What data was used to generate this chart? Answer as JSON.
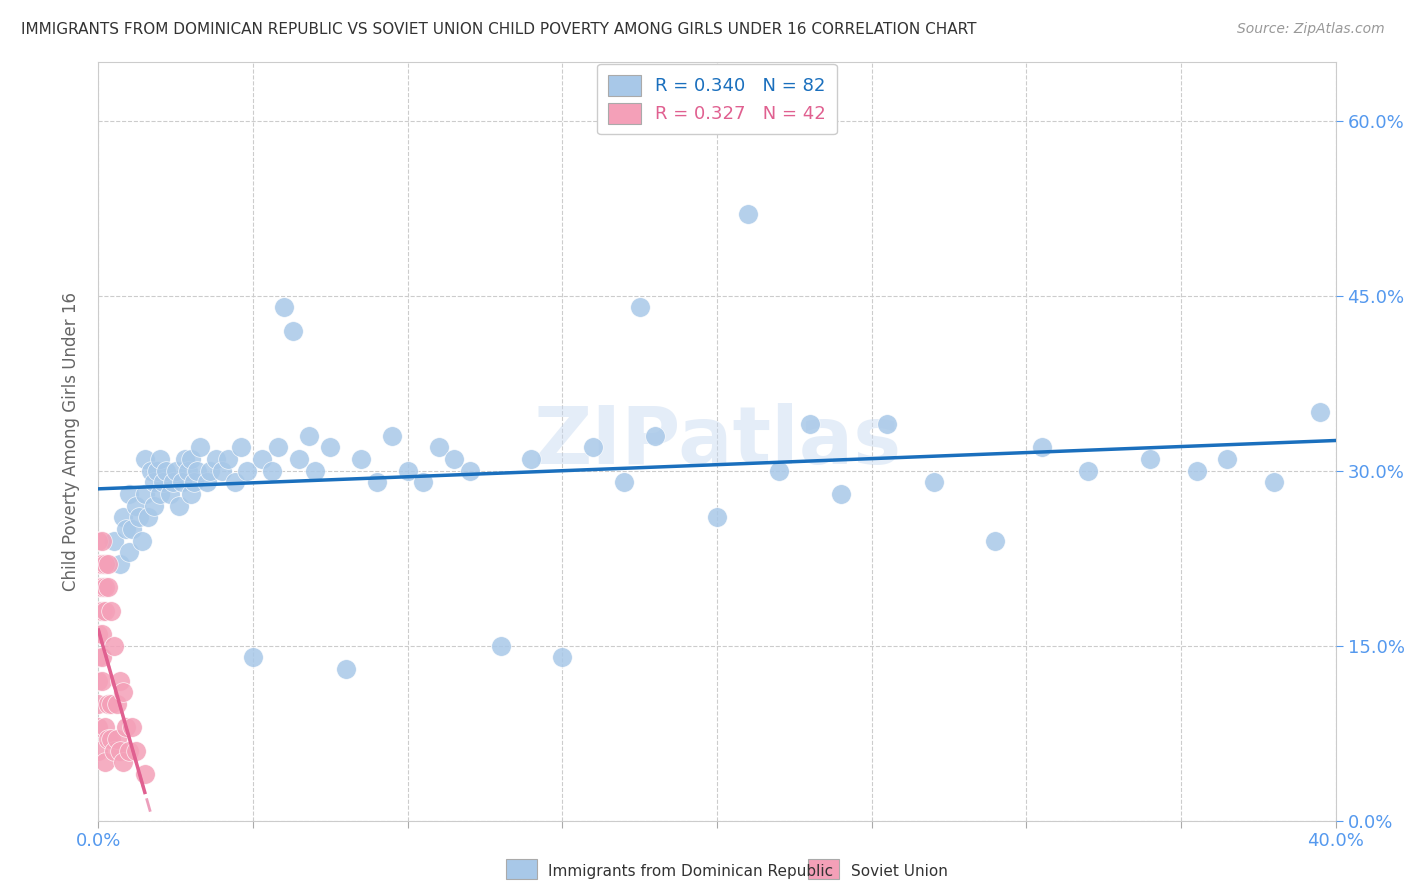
{
  "title": "IMMIGRANTS FROM DOMINICAN REPUBLIC VS SOVIET UNION CHILD POVERTY AMONG GIRLS UNDER 16 CORRELATION CHART",
  "source": "Source: ZipAtlas.com",
  "ylabel": "Child Poverty Among Girls Under 16",
  "xlim": [
    0.0,
    0.4
  ],
  "ylim": [
    0.0,
    0.65
  ],
  "xticks": [
    0.0,
    0.05,
    0.1,
    0.15,
    0.2,
    0.25,
    0.3,
    0.35,
    0.4
  ],
  "yticks": [
    0.0,
    0.15,
    0.3,
    0.45,
    0.6
  ],
  "ytick_labels": [
    "0.0%",
    "15.0%",
    "30.0%",
    "45.0%",
    "60.0%"
  ],
  "watermark": "ZIPatlas",
  "legend_label_blue": "R = 0.340   N = 82",
  "legend_label_pink": "R = 0.327   N = 42",
  "blue_color": "#a8c8e8",
  "pink_color": "#f4a0b8",
  "blue_line_color": "#1a6fbd",
  "pink_line_color": "#e06090",
  "background_color": "#ffffff",
  "grid_color": "#cccccc",
  "title_color": "#333333",
  "tick_color": "#5599ee",
  "dr_x": [
    0.005,
    0.007,
    0.008,
    0.009,
    0.01,
    0.01,
    0.011,
    0.012,
    0.013,
    0.014,
    0.015,
    0.015,
    0.016,
    0.017,
    0.018,
    0.018,
    0.019,
    0.02,
    0.02,
    0.021,
    0.022,
    0.023,
    0.024,
    0.025,
    0.026,
    0.027,
    0.028,
    0.029,
    0.03,
    0.03,
    0.031,
    0.032,
    0.033,
    0.035,
    0.036,
    0.038,
    0.04,
    0.042,
    0.044,
    0.046,
    0.048,
    0.05,
    0.053,
    0.056,
    0.058,
    0.06,
    0.063,
    0.065,
    0.068,
    0.07,
    0.075,
    0.08,
    0.085,
    0.09,
    0.095,
    0.1,
    0.105,
    0.11,
    0.115,
    0.12,
    0.13,
    0.14,
    0.15,
    0.16,
    0.17,
    0.175,
    0.18,
    0.2,
    0.21,
    0.22,
    0.23,
    0.24,
    0.255,
    0.27,
    0.29,
    0.305,
    0.32,
    0.34,
    0.355,
    0.365,
    0.38,
    0.395
  ],
  "dr_y": [
    0.24,
    0.22,
    0.26,
    0.25,
    0.23,
    0.28,
    0.25,
    0.27,
    0.26,
    0.24,
    0.28,
    0.31,
    0.26,
    0.3,
    0.27,
    0.29,
    0.3,
    0.28,
    0.31,
    0.29,
    0.3,
    0.28,
    0.29,
    0.3,
    0.27,
    0.29,
    0.31,
    0.3,
    0.28,
    0.31,
    0.29,
    0.3,
    0.32,
    0.29,
    0.3,
    0.31,
    0.3,
    0.31,
    0.29,
    0.32,
    0.3,
    0.14,
    0.31,
    0.3,
    0.32,
    0.44,
    0.42,
    0.31,
    0.33,
    0.3,
    0.32,
    0.13,
    0.31,
    0.29,
    0.33,
    0.3,
    0.29,
    0.32,
    0.31,
    0.3,
    0.15,
    0.31,
    0.14,
    0.32,
    0.29,
    0.44,
    0.33,
    0.26,
    0.52,
    0.3,
    0.34,
    0.28,
    0.34,
    0.29,
    0.24,
    0.32,
    0.3,
    0.31,
    0.3,
    0.31,
    0.29,
    0.35
  ],
  "su_x": [
    0.0,
    0.0,
    0.0,
    0.0,
    0.0,
    0.0,
    0.0,
    0.0,
    0.0,
    0.0,
    0.001,
    0.001,
    0.001,
    0.001,
    0.001,
    0.001,
    0.001,
    0.002,
    0.002,
    0.002,
    0.002,
    0.002,
    0.003,
    0.003,
    0.003,
    0.003,
    0.004,
    0.004,
    0.004,
    0.005,
    0.005,
    0.006,
    0.006,
    0.007,
    0.007,
    0.008,
    0.008,
    0.009,
    0.01,
    0.011,
    0.012,
    0.015
  ],
  "su_y": [
    0.24,
    0.22,
    0.2,
    0.18,
    0.16,
    0.14,
    0.12,
    0.1,
    0.08,
    0.06,
    0.24,
    0.22,
    0.2,
    0.18,
    0.16,
    0.14,
    0.12,
    0.22,
    0.2,
    0.18,
    0.08,
    0.05,
    0.22,
    0.2,
    0.1,
    0.07,
    0.18,
    0.1,
    0.07,
    0.15,
    0.06,
    0.1,
    0.07,
    0.12,
    0.06,
    0.11,
    0.05,
    0.08,
    0.06,
    0.08,
    0.06,
    0.04
  ]
}
